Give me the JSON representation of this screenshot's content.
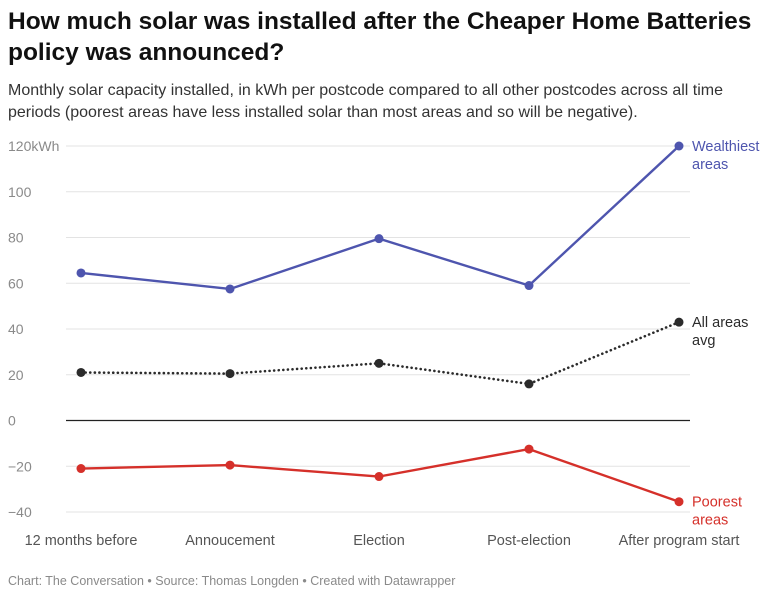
{
  "title": "How much solar was installed after the Cheaper Home Batteries policy was announced?",
  "subtitle": "Monthly solar capacity installed, in kWh per postcode compared to all other postcodes across all time periods (poorest areas have less installed solar than most areas and so will be negative).",
  "footer": "Chart: The Conversation • Source: Thomas Longden • Created with Datawrapper",
  "chart_data": {
    "type": "line",
    "categories": [
      "12 months before",
      "Annoucement",
      "Election",
      "Post-election",
      "After program start"
    ],
    "y_ticks": [
      120,
      100,
      80,
      60,
      40,
      20,
      0,
      -20,
      -40
    ],
    "y_tick_labels": [
      "120kWh",
      "100",
      "80",
      "60",
      "40",
      "20",
      "0",
      "−20",
      "−40"
    ],
    "ylim": [
      -40,
      120
    ],
    "grid": true,
    "series": [
      {
        "name": "Wealthiest areas",
        "label_lines": [
          "Wealthiest",
          "areas"
        ],
        "values": [
          64.5,
          57.5,
          79.5,
          59,
          120
        ],
        "color": "#4e55ae",
        "style": "solid"
      },
      {
        "name": "All areas avg",
        "label_lines": [
          "All areas",
          "avg"
        ],
        "values": [
          21,
          20.5,
          25,
          16,
          43
        ],
        "color": "#2b2b2b",
        "style": "dotted"
      },
      {
        "name": "Poorest areas",
        "label_lines": [
          "Poorest",
          "areas"
        ],
        "values": [
          -21,
          -19.5,
          -24.5,
          -12.5,
          -35.5
        ],
        "color": "#d5302a",
        "style": "solid"
      }
    ]
  }
}
